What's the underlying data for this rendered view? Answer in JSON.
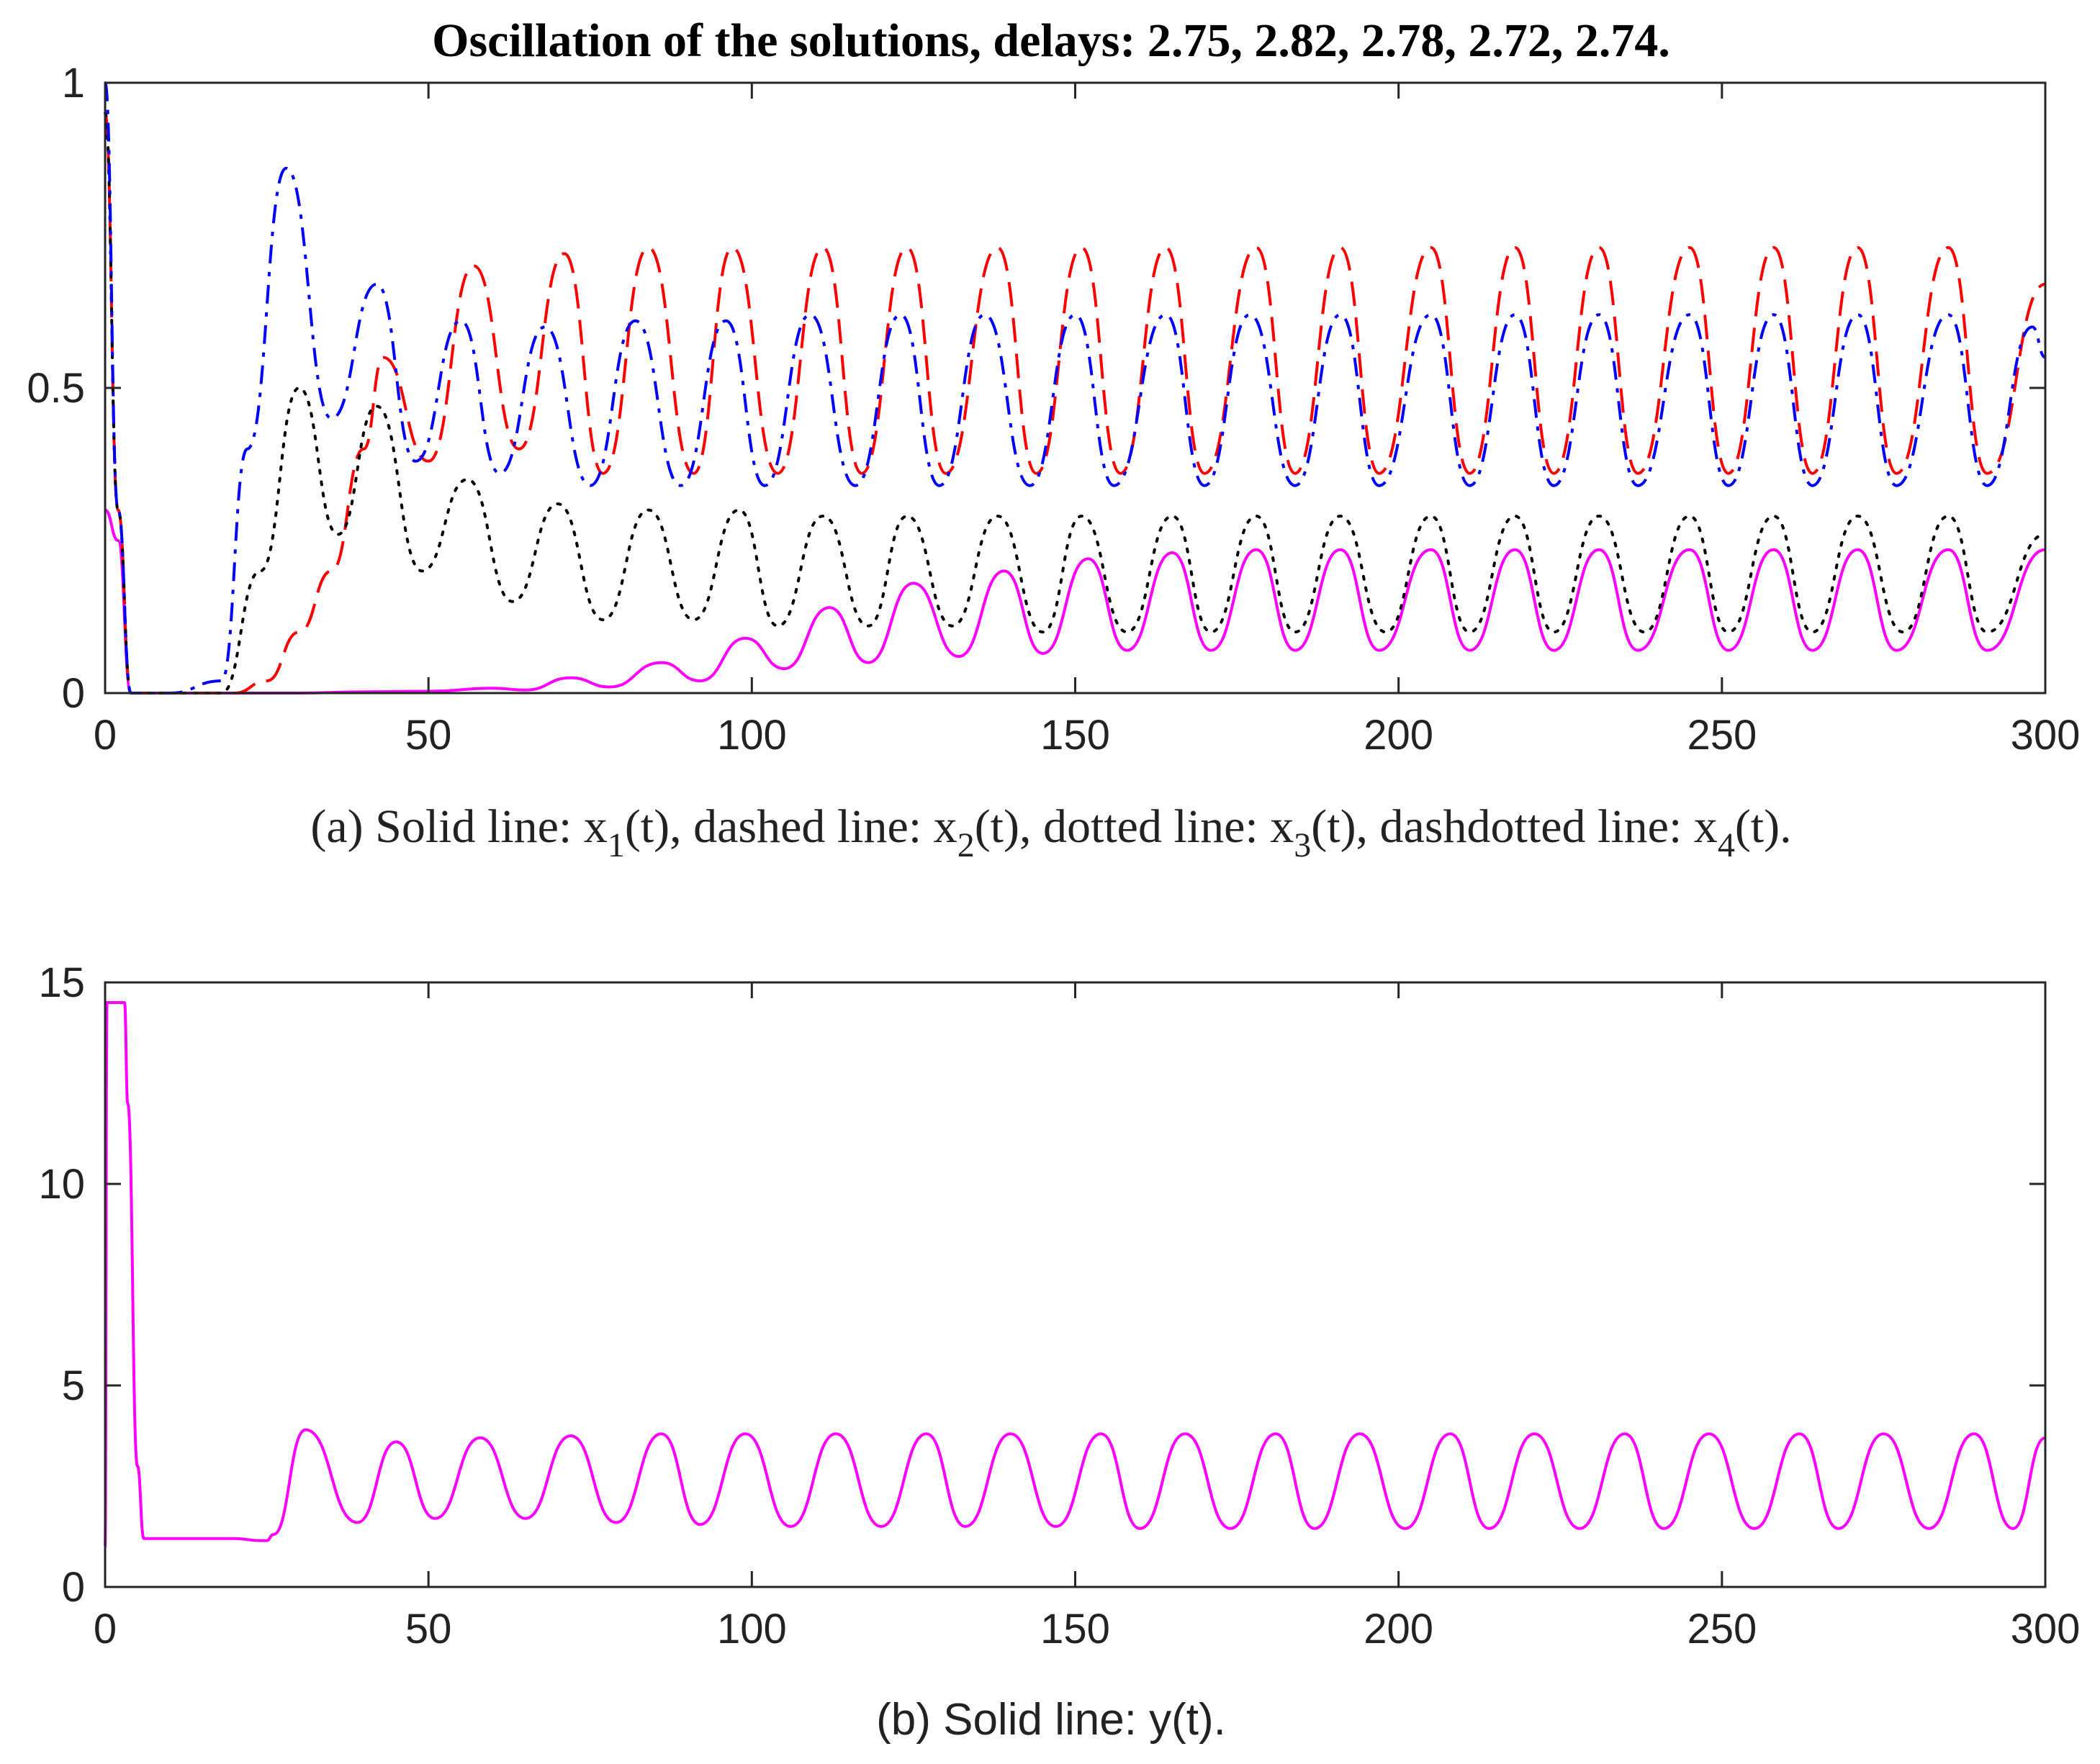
{
  "title": "Oscillation of the solutions, delays: 2.75, 2.82, 2.78, 2.72, 2.74.",
  "chart_data": [
    {
      "type": "line",
      "xlim": [
        0,
        300
      ],
      "ylim": [
        0,
        1
      ],
      "xticks": [
        0,
        50,
        100,
        150,
        200,
        250,
        300
      ],
      "yticks": [
        0,
        0.5,
        1
      ],
      "xtick_labels": [
        "0",
        "50",
        "100",
        "150",
        "200",
        "250",
        "300"
      ],
      "ytick_labels": [
        "0",
        "0.5",
        "1"
      ],
      "caption": {
        "prefix": "(a) Solid line: x",
        "s1": "1",
        "t1": "(t), dashed line: x",
        "s2": "2",
        "t2": "(t), dotted line: x",
        "s3": "3",
        "t3": "(t), dashdotted line: x",
        "s4": "4",
        "t4": "(t)."
      },
      "series": [
        {
          "name": "x1(t)",
          "style": "solid",
          "color": "#ff00ff",
          "x": [
            0,
            2,
            4,
            10,
            20,
            30,
            40,
            50,
            60,
            65,
            72,
            78,
            86,
            92,
            99,
            105,
            112,
            118,
            125,
            132,
            139,
            145,
            152,
            158,
            165,
            171,
            178,
            184,
            191,
            197,
            205,
            211,
            218,
            224,
            231,
            237,
            245,
            251,
            258,
            264,
            271,
            277,
            285,
            291,
            300
          ],
          "y": [
            0.3,
            0.25,
            0.0,
            0.0,
            0.0,
            0.0,
            0.002,
            0.003,
            0.008,
            0.005,
            0.025,
            0.01,
            0.05,
            0.02,
            0.09,
            0.04,
            0.14,
            0.05,
            0.18,
            0.06,
            0.2,
            0.065,
            0.22,
            0.07,
            0.23,
            0.07,
            0.235,
            0.07,
            0.235,
            0.07,
            0.235,
            0.07,
            0.235,
            0.07,
            0.235,
            0.07,
            0.235,
            0.07,
            0.235,
            0.07,
            0.235,
            0.07,
            0.235,
            0.07,
            0.235
          ]
        },
        {
          "name": "x2(t)",
          "style": "dashed",
          "color": "#ff0000",
          "x": [
            0,
            2,
            4,
            10,
            20,
            25,
            30,
            35,
            40,
            43,
            50,
            57,
            64,
            71,
            77,
            84,
            91,
            97,
            104,
            111,
            117,
            124,
            130,
            138,
            144,
            151,
            157,
            164,
            170,
            178,
            184,
            191,
            197,
            205,
            211,
            218,
            224,
            231,
            237,
            245,
            251,
            258,
            264,
            271,
            277,
            285,
            291,
            300
          ],
          "y": [
            0.95,
            0.3,
            0.0,
            0.0,
            0.0,
            0.02,
            0.1,
            0.2,
            0.4,
            0.55,
            0.38,
            0.7,
            0.4,
            0.72,
            0.36,
            0.73,
            0.36,
            0.73,
            0.36,
            0.73,
            0.36,
            0.73,
            0.36,
            0.73,
            0.36,
            0.73,
            0.36,
            0.73,
            0.36,
            0.73,
            0.36,
            0.73,
            0.36,
            0.73,
            0.36,
            0.73,
            0.36,
            0.73,
            0.36,
            0.73,
            0.36,
            0.73,
            0.36,
            0.73,
            0.36,
            0.73,
            0.36,
            0.67
          ]
        },
        {
          "name": "x3(t)",
          "style": "dotted",
          "color": "#000000",
          "x": [
            0,
            2,
            4,
            10,
            18,
            24,
            30,
            36,
            42,
            49,
            56,
            63,
            70,
            77,
            84,
            91,
            98,
            104,
            111,
            118,
            124,
            131,
            138,
            145,
            151,
            158,
            165,
            171,
            178,
            184,
            191,
            198,
            205,
            211,
            218,
            224,
            231,
            238,
            245,
            251,
            258,
            264,
            271,
            278,
            285,
            291,
            300
          ],
          "y": [
            0.95,
            0.3,
            0.0,
            0.0,
            0.0,
            0.2,
            0.5,
            0.26,
            0.47,
            0.2,
            0.35,
            0.15,
            0.31,
            0.12,
            0.3,
            0.12,
            0.3,
            0.11,
            0.29,
            0.11,
            0.29,
            0.11,
            0.29,
            0.1,
            0.29,
            0.1,
            0.29,
            0.1,
            0.29,
            0.1,
            0.29,
            0.1,
            0.29,
            0.1,
            0.29,
            0.1,
            0.29,
            0.1,
            0.29,
            0.1,
            0.29,
            0.1,
            0.29,
            0.1,
            0.29,
            0.1,
            0.26
          ]
        },
        {
          "name": "x4(t)",
          "style": "dashdot",
          "color": "#0000ff",
          "x": [
            0,
            2,
            4,
            10,
            18,
            22,
            28,
            35,
            42,
            48,
            55,
            61,
            68,
            75,
            82,
            89,
            96,
            102,
            109,
            116,
            123,
            129,
            136,
            143,
            150,
            156,
            164,
            170,
            177,
            184,
            191,
            197,
            205,
            211,
            218,
            224,
            231,
            237,
            245,
            251,
            258,
            264,
            271,
            277,
            285,
            291,
            298,
            300
          ],
          "y": [
            1.0,
            0.3,
            0.0,
            0.0,
            0.02,
            0.4,
            0.86,
            0.45,
            0.67,
            0.38,
            0.61,
            0.36,
            0.6,
            0.34,
            0.61,
            0.34,
            0.61,
            0.34,
            0.62,
            0.34,
            0.62,
            0.34,
            0.62,
            0.34,
            0.62,
            0.34,
            0.62,
            0.34,
            0.62,
            0.34,
            0.62,
            0.34,
            0.62,
            0.34,
            0.62,
            0.34,
            0.62,
            0.34,
            0.62,
            0.34,
            0.62,
            0.34,
            0.62,
            0.34,
            0.62,
            0.34,
            0.6,
            0.55
          ]
        }
      ]
    },
    {
      "type": "line",
      "xlim": [
        0,
        300
      ],
      "ylim": [
        0,
        15
      ],
      "xticks": [
        0,
        50,
        100,
        150,
        200,
        250,
        300
      ],
      "yticks": [
        0,
        5,
        10,
        15
      ],
      "xtick_labels": [
        "0",
        "50",
        "100",
        "150",
        "200",
        "250",
        "300"
      ],
      "ytick_labels": [
        "0",
        "5",
        "10",
        "15"
      ],
      "caption": {
        "text": "(b) Solid line: y(t)."
      },
      "series": [
        {
          "name": "y(t)",
          "style": "solid",
          "color": "#ff00ff",
          "x": [
            0,
            0.3,
            0.5,
            3,
            3.5,
            5,
            6,
            10,
            20,
            24,
            25,
            26,
            31,
            39,
            45,
            51,
            58,
            65,
            72,
            79,
            86,
            92,
            99,
            106,
            113,
            120,
            127,
            133,
            140,
            147,
            154,
            160,
            167,
            174,
            181,
            187,
            194,
            201,
            208,
            214,
            221,
            228,
            235,
            241,
            248,
            255,
            262,
            268,
            275,
            282,
            289,
            295,
            300
          ],
          "y": [
            1.0,
            14.5,
            14.5,
            14.5,
            12.0,
            3.0,
            1.2,
            1.2,
            1.2,
            1.15,
            1.15,
            1.3,
            3.9,
            1.6,
            3.6,
            1.7,
            3.7,
            1.7,
            3.75,
            1.6,
            3.8,
            1.55,
            3.8,
            1.5,
            3.8,
            1.5,
            3.8,
            1.5,
            3.8,
            1.5,
            3.8,
            1.45,
            3.8,
            1.45,
            3.8,
            1.45,
            3.8,
            1.45,
            3.8,
            1.45,
            3.8,
            1.45,
            3.8,
            1.45,
            3.8,
            1.45,
            3.8,
            1.45,
            3.8,
            1.45,
            3.8,
            1.45,
            3.7
          ]
        }
      ]
    }
  ]
}
